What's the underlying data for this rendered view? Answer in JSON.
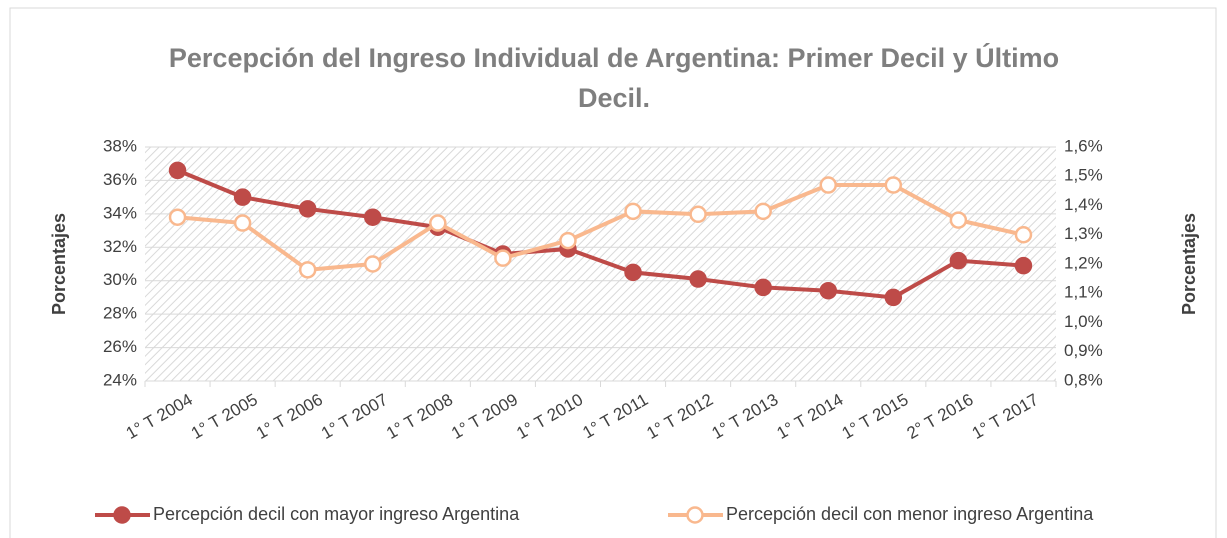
{
  "chart_data": {
    "type": "line",
    "title": "Percepción del Ingreso Individual de Argentina: Primer Decil y Último Decil.",
    "ylabel": "Porcentajes",
    "y2label": "Porcentajes",
    "categories": [
      "1° T 2004",
      "1° T 2005",
      "1° T 2006",
      "1° T 2007",
      "1° T 2008",
      "1° T 2009",
      "1° T 2010",
      "1° T 2011",
      "1° T 2012",
      "1° T 2013",
      "1° T 2014",
      "1° T 2015",
      "2° T 2016",
      "1° T 2017"
    ],
    "series": [
      {
        "name": "Percepción decil con mayor ingreso Argentina",
        "color": "#be4b48",
        "axis": "y",
        "values": [
          36.6,
          35.0,
          34.3,
          33.8,
          33.2,
          31.6,
          31.9,
          30.5,
          30.1,
          29.6,
          29.4,
          29.0,
          31.2,
          30.9
        ]
      },
      {
        "name": "Percepción decil con menor ingreso Argentina",
        "color": "#f9b88e",
        "axis": "y2",
        "values": [
          1.36,
          1.34,
          1.18,
          1.2,
          1.34,
          1.22,
          1.28,
          1.38,
          1.37,
          1.38,
          1.47,
          1.47,
          1.35,
          1.3
        ]
      }
    ],
    "ylim": [
      24,
      38
    ],
    "yticks": [
      {
        "value": 24,
        "label": "24%"
      },
      {
        "value": 26,
        "label": "26%"
      },
      {
        "value": 28,
        "label": "28%"
      },
      {
        "value": 30,
        "label": "30%"
      },
      {
        "value": 32,
        "label": "32%"
      },
      {
        "value": 34,
        "label": "34%"
      },
      {
        "value": 36,
        "label": "36%"
      },
      {
        "value": 38,
        "label": "38%"
      }
    ],
    "y2lim": [
      0.8,
      1.6
    ],
    "y2ticks": [
      {
        "value": 0.8,
        "label": "0,8%"
      },
      {
        "value": 0.9,
        "label": "0,9%"
      },
      {
        "value": 1.0,
        "label": "1,0%"
      },
      {
        "value": 1.1,
        "label": "1,1%"
      },
      {
        "value": 1.2,
        "label": "1,2%"
      },
      {
        "value": 1.3,
        "label": "1,3%"
      },
      {
        "value": 1.4,
        "label": "1,4%"
      },
      {
        "value": 1.5,
        "label": "1,5%"
      },
      {
        "value": 1.6,
        "label": "1,6%"
      }
    ],
    "grid": true,
    "legend": "bottom"
  }
}
